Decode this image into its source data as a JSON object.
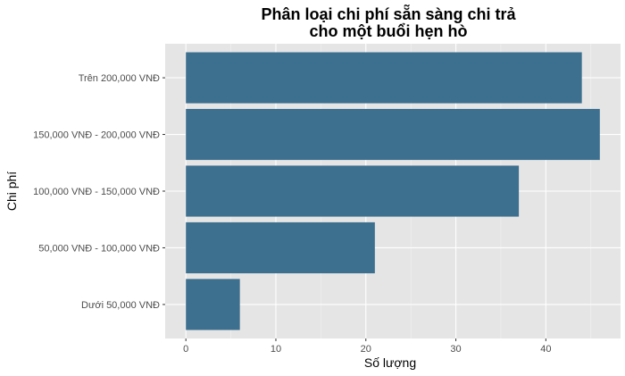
{
  "chart_data": {
    "type": "bar",
    "orientation": "horizontal",
    "title": [
      "Phân loại chi phí sẵn sàng chi trả",
      "cho một buổi hẹn hò"
    ],
    "xlabel": "Số lượng",
    "ylabel": "Chi phí",
    "categories": [
      "Dưới 50,000 VNĐ",
      "50,000 VNĐ - 100,000 VNĐ",
      "100,000 VNĐ - 150,000 VNĐ",
      "150,000 VNĐ - 200,000 VNĐ",
      "Trên 200,000 VNĐ"
    ],
    "values": [
      6,
      21,
      37,
      46,
      44
    ],
    "xlim": [
      -2.3,
      48.3
    ],
    "x_ticks": [
      0,
      10,
      20,
      30,
      40
    ],
    "grid": true,
    "legend": "none",
    "colors": {
      "bar": "#3d6f8f",
      "panel_background": "#e5e5e5",
      "grid_major": "#ffffff",
      "grid_minor": "#f2f2f2"
    }
  }
}
